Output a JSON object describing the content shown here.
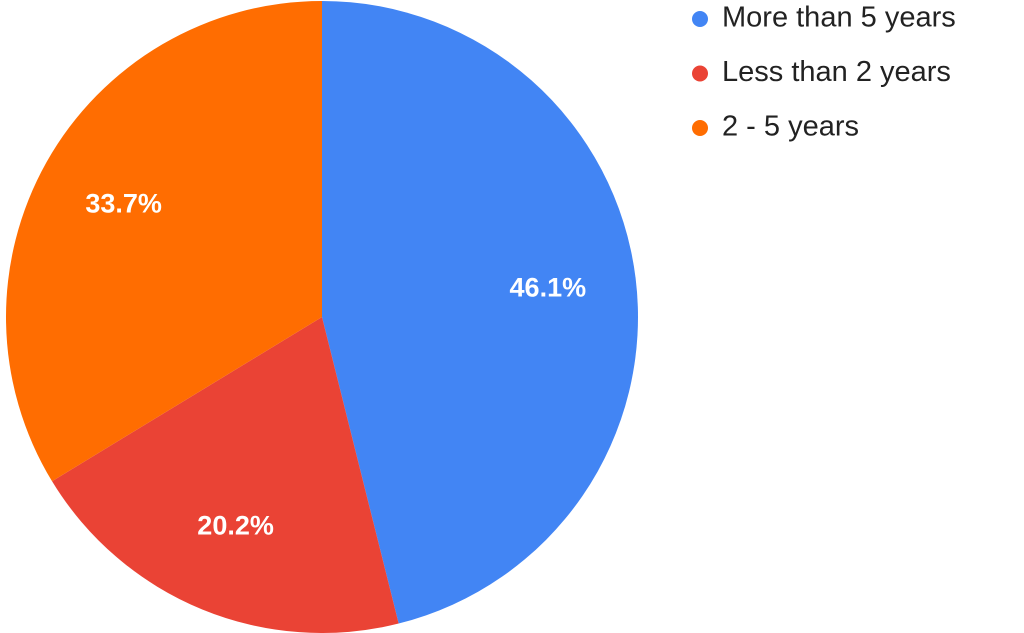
{
  "chart_data": {
    "type": "pie",
    "categories": [
      "More than 5 years",
      "Less than 2 years",
      "2 - 5 years"
    ],
    "values": [
      46.1,
      20.2,
      33.7
    ],
    "value_labels": [
      "46.1%",
      "20.2%",
      "33.7%"
    ],
    "colors": [
      "#4285f4",
      "#ea4335",
      "#ff6d01"
    ],
    "legend": "right"
  }
}
